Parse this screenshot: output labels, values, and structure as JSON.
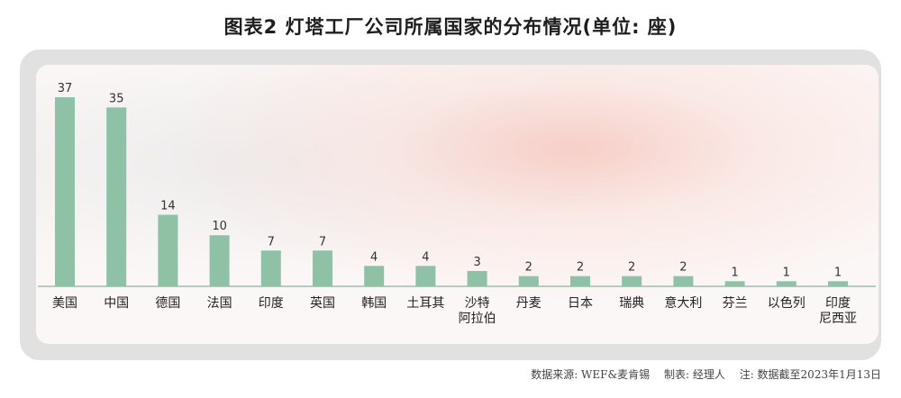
{
  "chart_data": {
    "type": "bar",
    "title": "图表2 灯塔工厂公司所属国家的分布情况(单位: 座)",
    "categories": [
      "美国",
      "中国",
      "德国",
      "法国",
      "印度",
      "英国",
      "韩国",
      "土耳其",
      "沙特\n阿拉伯",
      "丹麦",
      "日本",
      "瑞典",
      "意大利",
      "芬兰",
      "以色列",
      "印度\n尼西亚"
    ],
    "values": [
      37,
      35,
      14,
      10,
      7,
      7,
      4,
      4,
      3,
      2,
      2,
      2,
      2,
      1,
      1,
      1
    ],
    "ylim": [
      0,
      37
    ],
    "bar_color": "#8fc1a6",
    "grid": false,
    "legend": "none"
  },
  "footer": {
    "source": "数据来源: WEF&麦肯锡",
    "maker": "制表: 经理人",
    "note": "注: 数据截至2023年1月13日"
  }
}
